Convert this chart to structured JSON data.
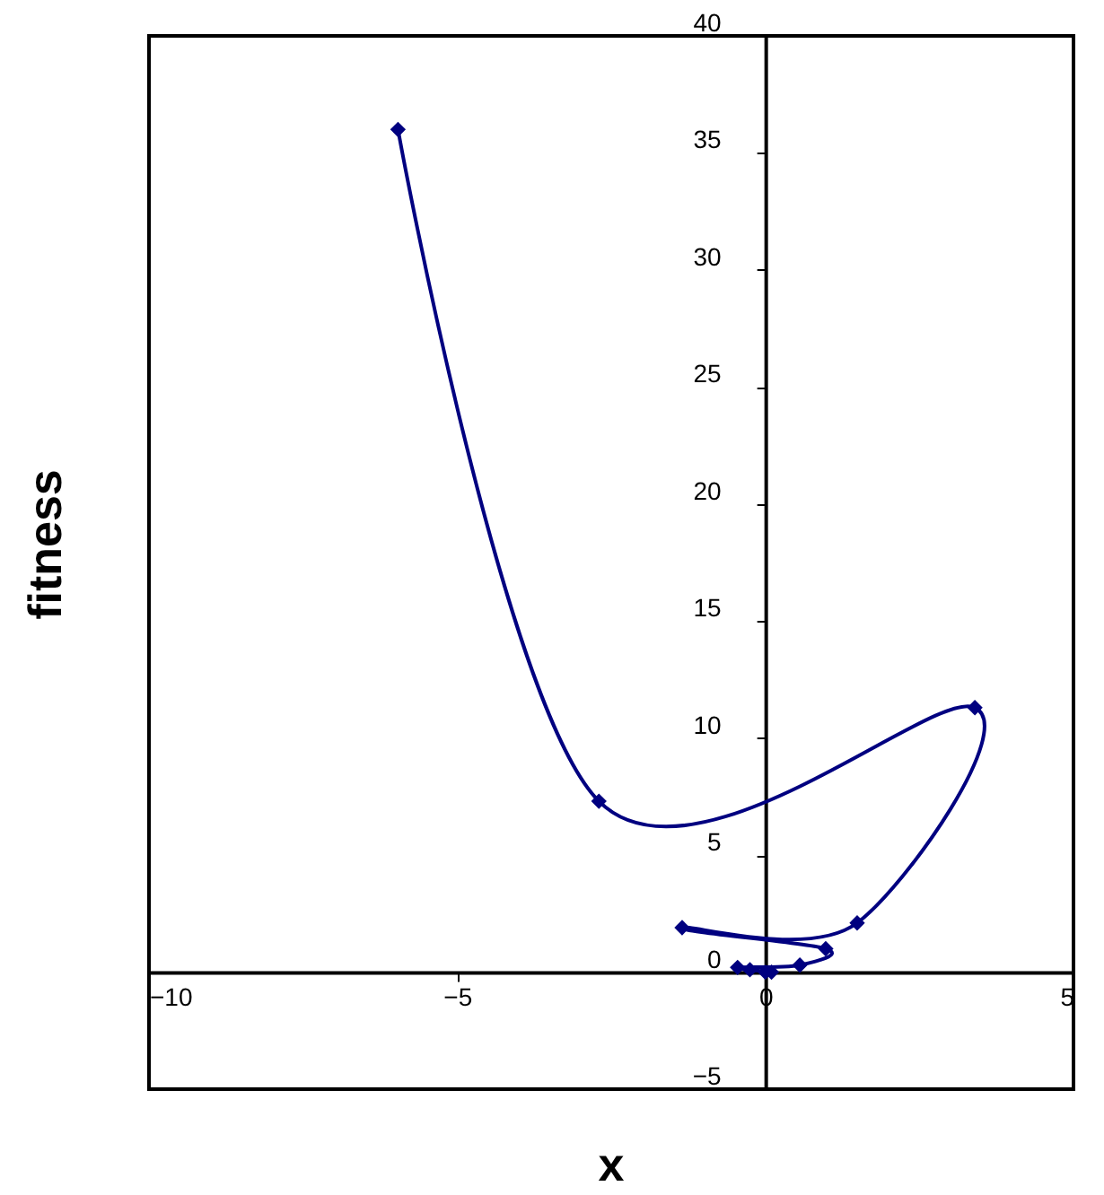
{
  "chart_data": {
    "type": "line",
    "xlabel": "x",
    "ylabel": "fitness",
    "series": [
      {
        "color": "#000080",
        "x": [
          -5.96,
          -2.7,
          3.4,
          1.49,
          -1.35,
          0.98,
          0.56,
          -0.45,
          -0.25,
          0.1,
          0.0
        ],
        "values": [
          36.0,
          7.3,
          11.3,
          2.1,
          1.9,
          1.0,
          0.3,
          0.2,
          0.1,
          0.0,
          0.0
        ]
      }
    ],
    "xlim": [
      -10,
      5
    ],
    "xticks": [
      -10,
      -5,
      0,
      5
    ],
    "ylim": [
      -5,
      40
    ],
    "yticks": [
      -5,
      0,
      5,
      10,
      15,
      20,
      25,
      30,
      35,
      40
    ],
    "grid": false,
    "legend": false,
    "marker": "diamond",
    "line_style": "solid"
  }
}
